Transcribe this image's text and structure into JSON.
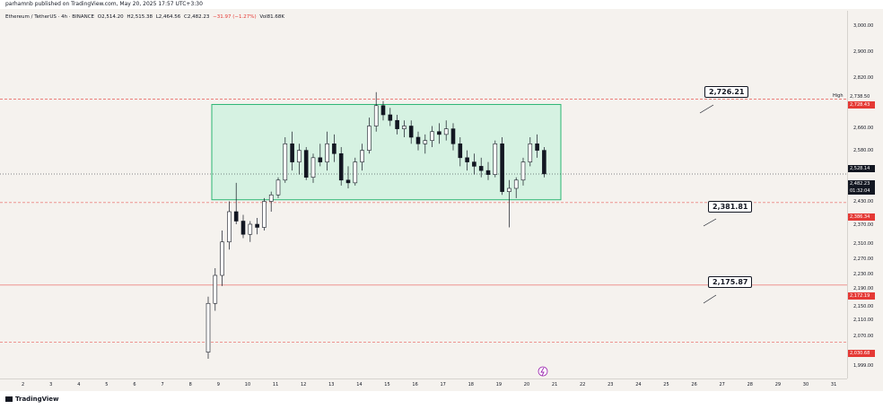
{
  "header": {
    "publisher": "parhamnb published on TradingView.com, May 20, 2025 17:57 UTC+3:30"
  },
  "symbol": {
    "title": "Ethereum / TetherUS · 4h · BINANCE",
    "open": "O2,514.20",
    "high": "H2,515.38",
    "low": "L2,464.56",
    "close": "C2,482.23",
    "change": "−31.97 (−1.27%)",
    "volume": "Vol81.68K"
  },
  "price_axis": {
    "ticks": [
      "3,000.00",
      "2,900.00",
      "2,820.00",
      "2,738.50",
      "2,660.00",
      "2,580.00",
      "2,528.14",
      "2,430.00",
      "2,370.00",
      "2,310.00",
      "2,270.00",
      "2,230.00",
      "2,190.00",
      "2,150.00",
      "2,110.00",
      "2,070.00",
      "1,999.00"
    ],
    "high_label": "High",
    "tags": {
      "high": "2,738.50",
      "resistance": "2,728.43",
      "prev_close": "2,528.14",
      "last_price": "2,482.23",
      "countdown": "01:32:04",
      "support1": "2,386.34",
      "support2": "2,172.19",
      "support3": "2,030.68"
    }
  },
  "time_axis": {
    "ticks": [
      "2",
      "3",
      "4",
      "5",
      "6",
      "7",
      "8",
      "9",
      "10",
      "11",
      "12",
      "13",
      "14",
      "15",
      "16",
      "17",
      "18",
      "19",
      "20",
      "21",
      "22",
      "23",
      "24",
      "25",
      "26",
      "27",
      "28",
      "29",
      "30",
      "31"
    ]
  },
  "callouts": {
    "resistance": "2,726.21",
    "support1": "2,381.81",
    "support2": "2,175.87"
  },
  "colors": {
    "box_fill": "#d6f2e2",
    "box_border": "#2bb673",
    "level_red": "#e53935",
    "candle": "#131722"
  },
  "footer": {
    "logo_text": "TradingView"
  },
  "chart_data": {
    "type": "candlestick",
    "timeframe": "4h",
    "x_label": "",
    "y_label": "",
    "ylim": [
      1990,
      3020
    ],
    "candles": [
      [
        2000,
        2140,
        1990,
        2120
      ],
      [
        2120,
        2210,
        2100,
        2190
      ],
      [
        2190,
        2310,
        2170,
        2280
      ],
      [
        2280,
        2390,
        2260,
        2370
      ],
      [
        2370,
        2450,
        2330,
        2340
      ],
      [
        2340,
        2360,
        2290,
        2300
      ],
      [
        2300,
        2340,
        2280,
        2330
      ],
      [
        2330,
        2350,
        2300,
        2320
      ],
      [
        2320,
        2400,
        2310,
        2390
      ],
      [
        2390,
        2420,
        2370,
        2410
      ],
      [
        2410,
        2470,
        2400,
        2460
      ],
      [
        2460,
        2580,
        2450,
        2560
      ],
      [
        2560,
        2600,
        2490,
        2510
      ],
      [
        2510,
        2560,
        2480,
        2540
      ],
      [
        2540,
        2550,
        2460,
        2470
      ],
      [
        2470,
        2530,
        2450,
        2520
      ],
      [
        2520,
        2560,
        2500,
        2510
      ],
      [
        2510,
        2600,
        2490,
        2560
      ],
      [
        2560,
        2590,
        2510,
        2530
      ],
      [
        2530,
        2550,
        2440,
        2460
      ],
      [
        2460,
        2500,
        2430,
        2450
      ],
      [
        2450,
        2520,
        2440,
        2510
      ],
      [
        2510,
        2560,
        2490,
        2540
      ],
      [
        2540,
        2650,
        2530,
        2620
      ],
      [
        2620,
        2750,
        2600,
        2700
      ],
      [
        2700,
        2720,
        2640,
        2660
      ],
      [
        2660,
        2690,
        2620,
        2640
      ],
      [
        2640,
        2660,
        2590,
        2610
      ],
      [
        2610,
        2640,
        2580,
        2620
      ],
      [
        2620,
        2640,
        2560,
        2580
      ],
      [
        2580,
        2600,
        2540,
        2560
      ],
      [
        2560,
        2590,
        2530,
        2570
      ],
      [
        2570,
        2620,
        2550,
        2600
      ],
      [
        2600,
        2630,
        2560,
        2590
      ],
      [
        2590,
        2640,
        2570,
        2610
      ],
      [
        2610,
        2630,
        2540,
        2560
      ],
      [
        2560,
        2580,
        2500,
        2520
      ],
      [
        2520,
        2540,
        2490,
        2510
      ],
      [
        2510,
        2530,
        2480,
        2500
      ],
      [
        2500,
        2520,
        2470,
        2490
      ],
      [
        2490,
        2510,
        2460,
        2480
      ],
      [
        2480,
        2570,
        2470,
        2560
      ],
      [
        2560,
        2580,
        2410,
        2420
      ],
      [
        2420,
        2460,
        2320,
        2430
      ],
      [
        2430,
        2470,
        2400,
        2460
      ],
      [
        2460,
        2520,
        2440,
        2510
      ],
      [
        2510,
        2580,
        2500,
        2560
      ],
      [
        2560,
        2590,
        2520,
        2540
      ],
      [
        2540,
        2550,
        2470,
        2482.23
      ]
    ],
    "levels": [
      2728.43,
      2386.34,
      2172.19,
      2030.68
    ],
    "range_box": {
      "top": 2705,
      "bottom": 2395
    }
  }
}
